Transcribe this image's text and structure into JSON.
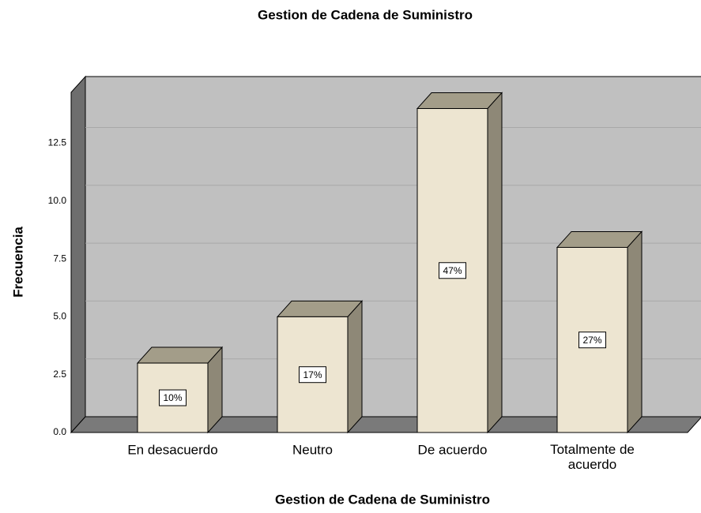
{
  "chart_data": {
    "type": "bar3d",
    "title": "Gestion de Cadena de Suministro",
    "xlabel": "Gestion de Cadena de Suministro",
    "ylabel": "Frecuencia",
    "categories": [
      "En desacuerdo",
      "Neutro",
      "De acuerdo",
      "Totalmente de acuerdo"
    ],
    "values": [
      3,
      5,
      14,
      8
    ],
    "percent_labels": [
      "10%",
      "17%",
      "47%",
      "27%"
    ],
    "color": "#ede5d1",
    "ylim": [
      0,
      14.7
    ],
    "yticks": [
      {
        "value": 0,
        "label": "0.0"
      },
      {
        "value": 2.5,
        "label": "2.5"
      },
      {
        "value": 5,
        "label": "5.0"
      },
      {
        "value": 7.5,
        "label": "7.5"
      },
      {
        "value": 10,
        "label": "10.0"
      },
      {
        "value": 12.5,
        "label": "12.5"
      }
    ],
    "grid": true
  }
}
